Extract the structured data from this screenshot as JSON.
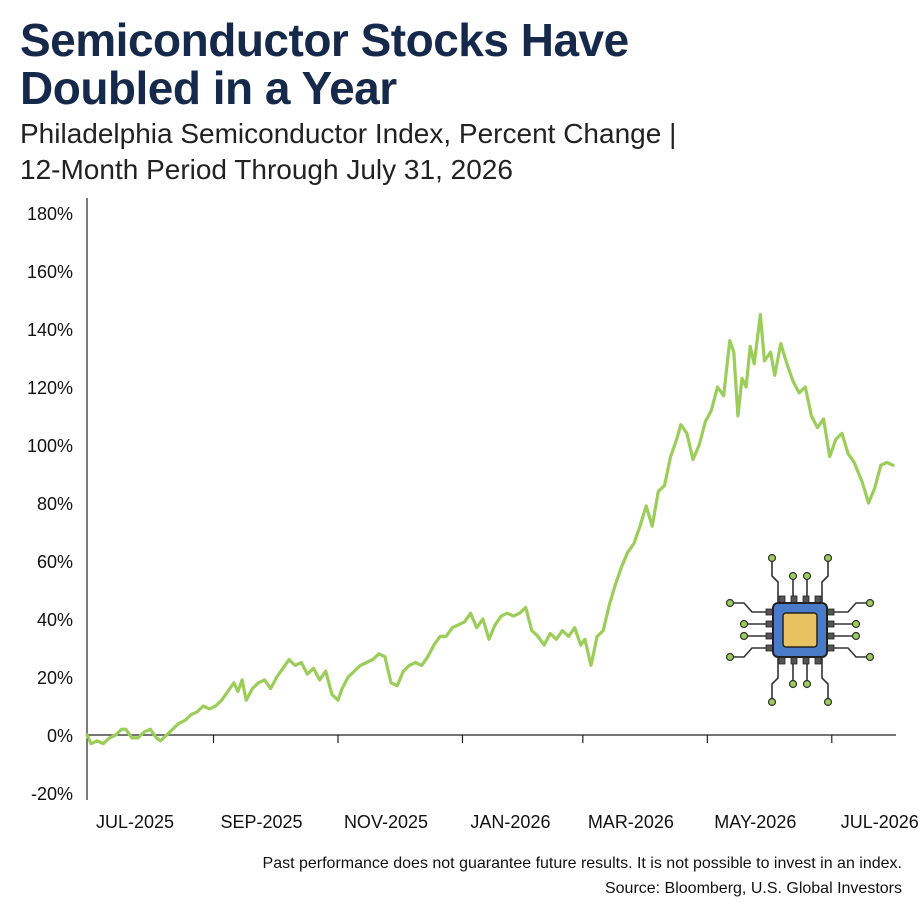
{
  "title_line1": "Semiconductor Stocks Have",
  "title_line2": "Doubled in a Year",
  "subtitle_line1": "Philadelphia Semiconductor Index, Percent Change |",
  "subtitle_line2": "12-Month Period Through July 31, 2026",
  "footer_disclaimer": "Past performance does not guarantee future results. It is not possible to invest in an index.",
  "footer_source": "Source: Bloomberg, U.S. Global Investors",
  "icon": "microchip-icon",
  "colors": {
    "line": "#9ccc5a",
    "title": "#16294a",
    "chip_body": "#4a7bc8",
    "chip_core": "#e8c260"
  },
  "chart_data": {
    "type": "line",
    "ylim": [
      -20,
      180
    ],
    "yticks": [
      "-20%",
      "0%",
      "20%",
      "40%",
      "60%",
      "80%",
      "100%",
      "120%",
      "140%",
      "160%",
      "180%"
    ],
    "ytick_values": [
      -20,
      0,
      20,
      40,
      60,
      80,
      100,
      120,
      140,
      160,
      180
    ],
    "xticks": [
      "JUL-2025",
      "SEP-2025",
      "NOV-2025",
      "JAN-2026",
      "MAR-2026",
      "MAY-2026",
      "JUL-2026"
    ],
    "xtick_dates": [
      "2025-07-01",
      "2025-09-01",
      "2025-11-01",
      "2026-01-01",
      "2026-03-01",
      "2026-05-01",
      "2026-07-01"
    ],
    "x_range": [
      "2025-07-01",
      "2026-07-31"
    ],
    "grid": false,
    "series": [
      {
        "points": [
          [
            "2025-07-01",
            0
          ],
          [
            "2025-07-03",
            -3
          ],
          [
            "2025-07-06",
            -2
          ],
          [
            "2025-07-09",
            -3
          ],
          [
            "2025-07-12",
            -1
          ],
          [
            "2025-07-15",
            0
          ],
          [
            "2025-07-18",
            2
          ],
          [
            "2025-07-20",
            2
          ],
          [
            "2025-07-23",
            -1
          ],
          [
            "2025-07-26",
            -1
          ],
          [
            "2025-07-29",
            1
          ],
          [
            "2025-08-01",
            2
          ],
          [
            "2025-08-04",
            -1
          ],
          [
            "2025-08-06",
            -2
          ],
          [
            "2025-08-09",
            0
          ],
          [
            "2025-08-12",
            2
          ],
          [
            "2025-08-15",
            4
          ],
          [
            "2025-08-18",
            5
          ],
          [
            "2025-08-21",
            7
          ],
          [
            "2025-08-24",
            8
          ],
          [
            "2025-08-27",
            10
          ],
          [
            "2025-08-30",
            9
          ],
          [
            "2025-09-02",
            10
          ],
          [
            "2025-09-05",
            12
          ],
          [
            "2025-09-08",
            15
          ],
          [
            "2025-09-11",
            18
          ],
          [
            "2025-09-13",
            15
          ],
          [
            "2025-09-15",
            19
          ],
          [
            "2025-09-17",
            12
          ],
          [
            "2025-09-20",
            16
          ],
          [
            "2025-09-23",
            18
          ],
          [
            "2025-09-26",
            19
          ],
          [
            "2025-09-29",
            16
          ],
          [
            "2025-10-02",
            20
          ],
          [
            "2025-10-05",
            23
          ],
          [
            "2025-10-08",
            26
          ],
          [
            "2025-10-11",
            24
          ],
          [
            "2025-10-14",
            25
          ],
          [
            "2025-10-17",
            21
          ],
          [
            "2025-10-20",
            23
          ],
          [
            "2025-10-23",
            19
          ],
          [
            "2025-10-26",
            22
          ],
          [
            "2025-10-29",
            14
          ],
          [
            "2025-11-01",
            12
          ],
          [
            "2025-11-03",
            16
          ],
          [
            "2025-11-06",
            20
          ],
          [
            "2025-11-09",
            22
          ],
          [
            "2025-11-12",
            24
          ],
          [
            "2025-11-15",
            25
          ],
          [
            "2025-11-18",
            26
          ],
          [
            "2025-11-21",
            28
          ],
          [
            "2025-11-24",
            27
          ],
          [
            "2025-11-27",
            18
          ],
          [
            "2025-11-30",
            17
          ],
          [
            "2025-12-03",
            22
          ],
          [
            "2025-12-06",
            24
          ],
          [
            "2025-12-09",
            25
          ],
          [
            "2025-12-12",
            24
          ],
          [
            "2025-12-15",
            27
          ],
          [
            "2025-12-18",
            31
          ],
          [
            "2025-12-21",
            34
          ],
          [
            "2025-12-24",
            34
          ],
          [
            "2025-12-27",
            37
          ],
          [
            "2025-12-30",
            38
          ],
          [
            "2026-01-02",
            39
          ],
          [
            "2026-01-05",
            42
          ],
          [
            "2026-01-08",
            37
          ],
          [
            "2026-01-11",
            40
          ],
          [
            "2026-01-14",
            33
          ],
          [
            "2026-01-17",
            38
          ],
          [
            "2026-01-20",
            41
          ],
          [
            "2026-01-23",
            42
          ],
          [
            "2026-01-26",
            41
          ],
          [
            "2026-01-29",
            42
          ],
          [
            "2026-02-01",
            44
          ],
          [
            "2026-02-04",
            36
          ],
          [
            "2026-02-07",
            34
          ],
          [
            "2026-02-10",
            31
          ],
          [
            "2026-02-13",
            35
          ],
          [
            "2026-02-16",
            33
          ],
          [
            "2026-02-19",
            36
          ],
          [
            "2026-02-22",
            34
          ],
          [
            "2026-02-25",
            37
          ],
          [
            "2026-02-28",
            31
          ],
          [
            "2026-03-02",
            33
          ],
          [
            "2026-03-05",
            24
          ],
          [
            "2026-03-08",
            34
          ],
          [
            "2026-03-11",
            36
          ],
          [
            "2026-03-14",
            45
          ],
          [
            "2026-03-17",
            52
          ],
          [
            "2026-03-20",
            58
          ],
          [
            "2026-03-23",
            63
          ],
          [
            "2026-03-26",
            66
          ],
          [
            "2026-03-29",
            72
          ],
          [
            "2026-04-01",
            79
          ],
          [
            "2026-04-04",
            72
          ],
          [
            "2026-04-07",
            84
          ],
          [
            "2026-04-10",
            86
          ],
          [
            "2026-04-13",
            96
          ],
          [
            "2026-04-16",
            102
          ],
          [
            "2026-04-18",
            107
          ],
          [
            "2026-04-21",
            104
          ],
          [
            "2026-04-24",
            95
          ],
          [
            "2026-04-27",
            100
          ],
          [
            "2026-04-30",
            108
          ],
          [
            "2026-05-03",
            112
          ],
          [
            "2026-05-06",
            120
          ],
          [
            "2026-05-09",
            117
          ],
          [
            "2026-05-12",
            136
          ],
          [
            "2026-05-14",
            132
          ],
          [
            "2026-05-16",
            110
          ],
          [
            "2026-05-18",
            123
          ],
          [
            "2026-05-20",
            120
          ],
          [
            "2026-05-22",
            134
          ],
          [
            "2026-05-24",
            128
          ],
          [
            "2026-05-27",
            145
          ],
          [
            "2026-05-29",
            129
          ],
          [
            "2026-06-01",
            132
          ],
          [
            "2026-06-03",
            124
          ],
          [
            "2026-06-06",
            135
          ],
          [
            "2026-06-09",
            128
          ],
          [
            "2026-06-12",
            122
          ],
          [
            "2026-06-15",
            118
          ],
          [
            "2026-06-18",
            120
          ],
          [
            "2026-06-21",
            110
          ],
          [
            "2026-06-24",
            106
          ],
          [
            "2026-06-27",
            109
          ],
          [
            "2026-06-30",
            96
          ],
          [
            "2026-07-03",
            102
          ],
          [
            "2026-07-06",
            104
          ],
          [
            "2026-07-09",
            97
          ],
          [
            "2026-07-12",
            94
          ],
          [
            "2026-07-16",
            87
          ],
          [
            "2026-07-19",
            80
          ],
          [
            "2026-07-22",
            85
          ],
          [
            "2026-07-25",
            93
          ],
          [
            "2026-07-28",
            94
          ],
          [
            "2026-07-31",
            93
          ]
        ]
      }
    ]
  }
}
